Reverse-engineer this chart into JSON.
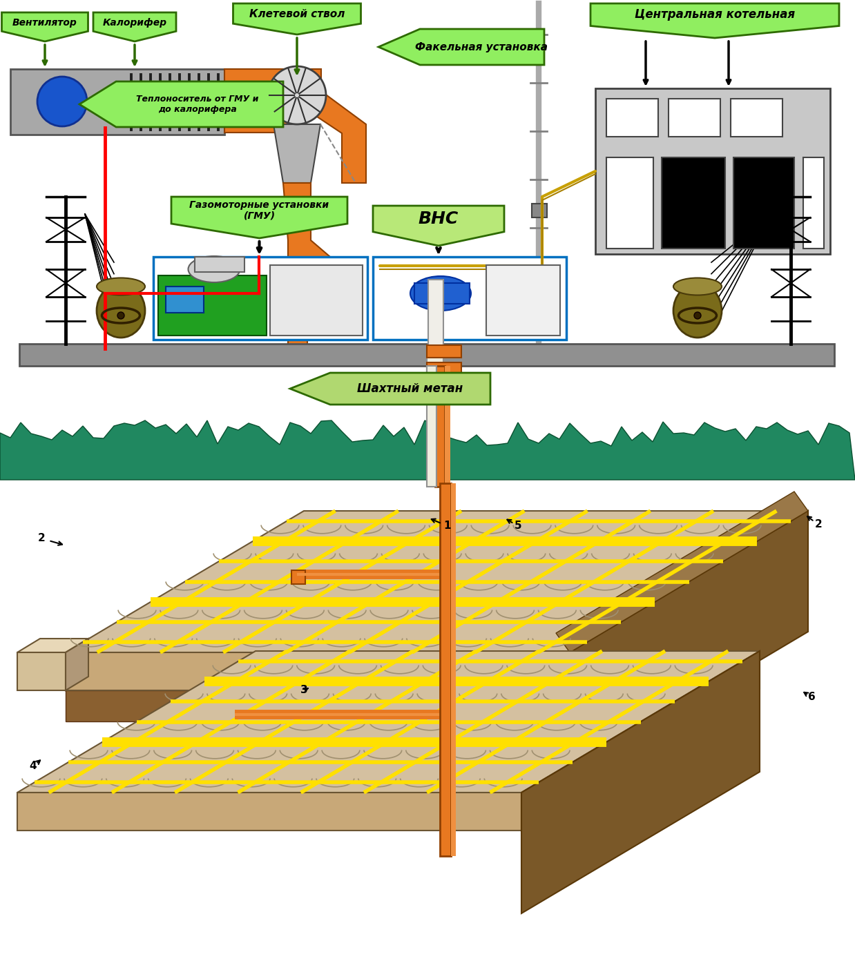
{
  "bg_color": "#ffffff",
  "green_bg": "#90EE60",
  "green_border": "#2d6a00",
  "green_bg2": "#A8D870",
  "orange": "#E87820",
  "red": "#FF0000",
  "yellow": "#FFE000",
  "blue": "#0070C0",
  "gray": "#C0C0C0",
  "dark_gray": "#808080",
  "tan": "#D8C0A0",
  "brown": "#8B6840",
  "dark_brown": "#6B4820",
  "gold_wire": "#C8A000",
  "labels": {
    "ventilator": "Вентилятор",
    "kalorifer": "Калорифер",
    "kletevoy": "Клетевой ствол",
    "fakelnaya": "Факельная установка",
    "centralnaya": "Центральная котельная",
    "teplonositel": "Теплоноситель от ГМУ и\nдо калорифера",
    "gazomotornye": "Газомоторные установки\n(ГМУ)",
    "vns": "ВНС",
    "shakhtnyy": "Шахтный метан"
  }
}
